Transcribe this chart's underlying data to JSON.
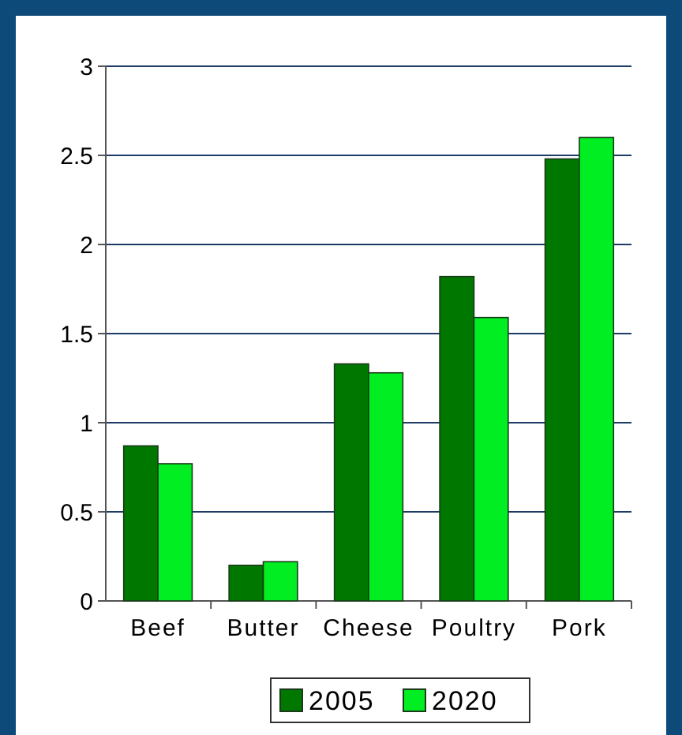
{
  "chart_data": {
    "type": "bar",
    "categories": [
      "Beef",
      "Butter",
      "Cheese",
      "Poultry",
      "Pork"
    ],
    "series": [
      {
        "name": "2005",
        "color": "#007800",
        "values": [
          0.87,
          0.2,
          1.33,
          1.82,
          2.48
        ]
      },
      {
        "name": "2020",
        "color": "#00ee22",
        "values": [
          0.77,
          0.22,
          1.28,
          1.59,
          2.6
        ]
      }
    ],
    "ylim": [
      0,
      3
    ],
    "yticks": [
      0,
      {
        "value": 0.5,
        "label": "0.5"
      },
      1,
      {
        "value": 1.5,
        "label": "1.5"
      },
      2,
      {
        "value": 2.5,
        "label": "2.5"
      },
      3
    ],
    "grid": "y",
    "legend": "bottom"
  }
}
